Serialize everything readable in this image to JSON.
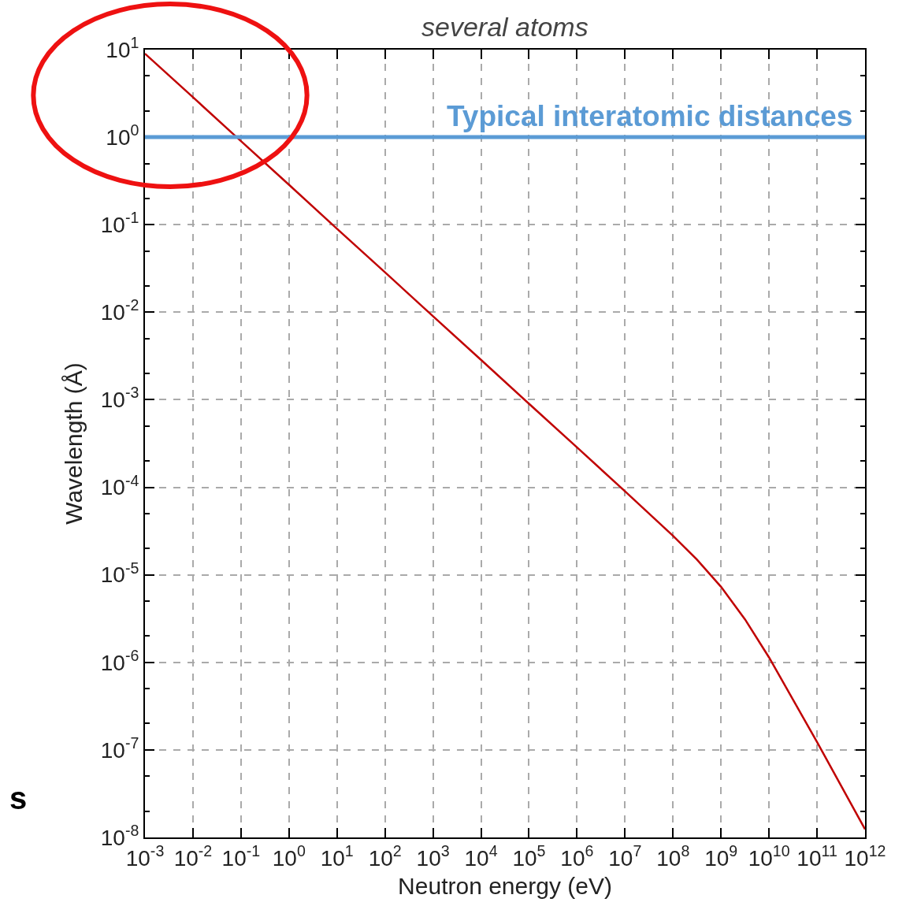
{
  "chart_data": {
    "type": "line",
    "xlabel": "Neutron energy (eV)",
    "ylabel": "Wavelength (Å)",
    "annotations": [
      "several atoms",
      "s"
    ],
    "x": [
      0.001,
      0.01,
      0.1,
      1,
      10,
      100,
      1000,
      10000,
      100000,
      1000000,
      10000000,
      100000000,
      316000000,
      1000000000,
      3160000000,
      10000000000,
      100000000000,
      1000000000000
    ],
    "series": [
      {
        "color": "#c00000",
        "values": [
          9.0,
          2.86,
          0.9,
          0.286,
          0.09,
          0.0286,
          0.009,
          0.00286,
          0.0009,
          0.000286,
          9e-05,
          2.79e-05,
          1.49e-05,
          7.3e-06,
          3.1e-06,
          1.14e-06,
          1.23e-07,
          1.24e-08
        ]
      }
    ],
    "ref_lines": [
      {
        "axis": "y",
        "value": 1,
        "label": "Typical interatomic distances",
        "color": "#5b9bd5"
      }
    ],
    "log": "xy",
    "grid": true,
    "legend": false,
    "marker": "none",
    "line_style": "solid",
    "xlim": [
      0.001,
      1000000000000
    ],
    "ylim": [
      1e-08,
      10
    ],
    "xticks": [
      {
        "value": 0.001,
        "label": "10$^{-3}$"
      },
      {
        "value": 0.01,
        "label": "10$^{-2}$"
      },
      {
        "value": 0.1,
        "label": "10$^{-1}$"
      },
      {
        "value": 1,
        "label": "10$^{0}$"
      },
      {
        "value": 10,
        "label": "10$^{1}$"
      },
      {
        "value": 100,
        "label": "10$^{2}$"
      },
      {
        "value": 1000,
        "label": "10$^{3}$"
      },
      {
        "value": 10000,
        "label": "10$^{4}$"
      },
      {
        "value": 100000,
        "label": "10$^{5}$"
      },
      {
        "value": 1000000,
        "label": "10$^{6}$"
      },
      {
        "value": 10000000,
        "label": "10$^{7}$"
      },
      {
        "value": 100000000,
        "label": "10$^{8}$"
      },
      {
        "value": 1000000000,
        "label": "10$^{9}$"
      },
      {
        "value": 10000000000,
        "label": "10$^{10}$"
      },
      {
        "value": 100000000000,
        "label": "10$^{11}$"
      },
      {
        "value": 1000000000000,
        "label": "10$^{12}$"
      }
    ],
    "yticks": [
      {
        "value": 1e-08,
        "label": "10$^{-8}$"
      },
      {
        "value": 1e-07,
        "label": "10$^{-7}$"
      },
      {
        "value": 1e-06,
        "label": "10$^{-6}$"
      },
      {
        "value": 1e-05,
        "label": "10$^{-5}$"
      },
      {
        "value": 0.0001,
        "label": "10$^{-4}$"
      },
      {
        "value": 0.001,
        "label": "10$^{-3}$"
      },
      {
        "value": 0.01,
        "label": "10$^{-2}$"
      },
      {
        "value": 0.1,
        "label": "10$^{-1}$"
      },
      {
        "value": 1,
        "label": "10$^{0}$"
      },
      {
        "value": 10,
        "label": "10$^{1}$"
      }
    ]
  }
}
